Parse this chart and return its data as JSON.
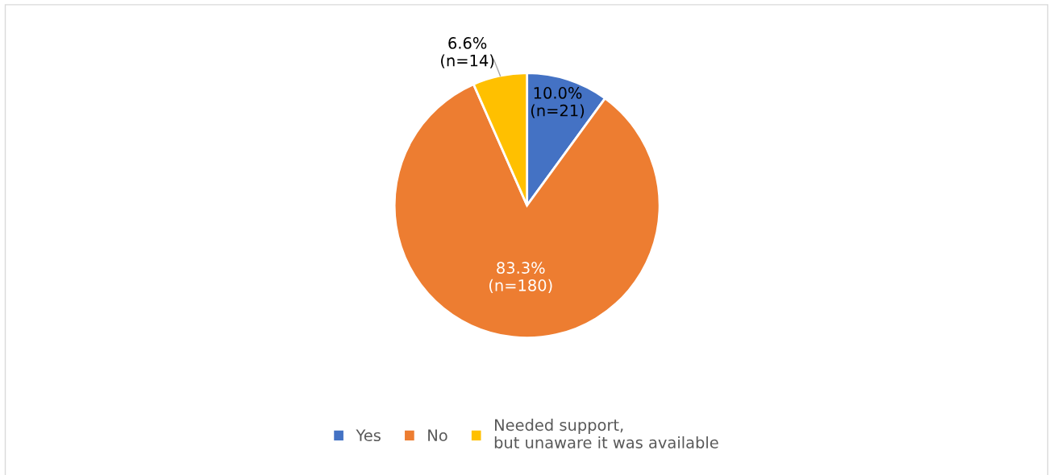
{
  "chart_data": {
    "type": "pie",
    "categories": [
      "Yes",
      "No",
      "Needed support,\nbut unaware it was available"
    ],
    "values": [
      10.0,
      83.3,
      6.6
    ],
    "colors": [
      "#4472c4",
      "#ed7d31",
      "#ffc000"
    ],
    "value_labels": [
      "10.0%\n(n=21)",
      "83.3%\n(n=180)",
      "6.6%\n(n=14)"
    ],
    "legend": "bottom"
  }
}
